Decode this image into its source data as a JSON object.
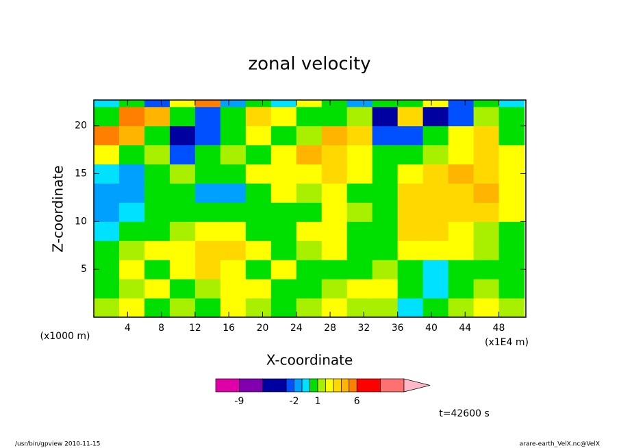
{
  "chart_data": {
    "type": "contour",
    "title": "zonal velocity",
    "x_label": "X-coordinate",
    "y_label": "Z-coordinate",
    "x_unit": "(x1E4 m)",
    "y_unit": "(x1000 m)",
    "time_label": "t=42600 s",
    "footer_left": "/usr/bin/gpview  2010-11-15",
    "footer_right": "arare-earth_VelX.nc@VelX",
    "xlim": [
      0,
      51.2
    ],
    "ylim": [
      0,
      22.7
    ],
    "xticks": [
      4,
      8,
      12,
      16,
      20,
      24,
      28,
      32,
      36,
      40,
      44,
      48
    ],
    "yticks": [
      5,
      10,
      15,
      20
    ],
    "levels": [
      -12,
      -9,
      -6,
      -3,
      -2,
      -1,
      0,
      1,
      2,
      3,
      4,
      5,
      6,
      9,
      12
    ],
    "level_colors": [
      "#e000a8",
      "#8000b0",
      "#0000a0",
      "#0050ff",
      "#00a0ff",
      "#00e0ff",
      "#00e000",
      "#a8f000",
      "#ffff00",
      "#ffd800",
      "#ffb400",
      "#ff8000",
      "#ff0000",
      "#ff7070",
      "#ffb8c8"
    ],
    "colorbar_ticks": [
      -9,
      -2,
      1,
      6
    ],
    "x": [
      1.5,
      4.5,
      7.5,
      10.5,
      13.5,
      16.5,
      19.5,
      22.5,
      25.5,
      28.5,
      31.5,
      34.5,
      37.5,
      40.5,
      43.5,
      46.5,
      49.5
    ],
    "z": [
      1,
      3,
      5,
      7,
      9,
      11,
      13,
      15,
      17,
      19,
      21,
      23
    ],
    "values": [
      [
        1.5,
        2.5,
        0.5,
        1.5,
        0.5,
        2.5,
        1.5,
        0.5,
        1.5,
        2.5,
        1.5,
        1.5,
        -0.5,
        0.5,
        1.5,
        2.5,
        1.5
      ],
      [
        0.5,
        1.5,
        2.5,
        0.5,
        1.5,
        2.5,
        2.5,
        0.5,
        0.5,
        1.5,
        2.5,
        2.5,
        0.5,
        -0.5,
        0.5,
        1.5,
        0.5
      ],
      [
        0.5,
        2.5,
        0.5,
        2.5,
        3.5,
        2.5,
        0.5,
        2.5,
        0.5,
        0.5,
        0.5,
        1.5,
        0.5,
        -0.5,
        0.5,
        0.5,
        0.5
      ],
      [
        0.5,
        1.5,
        2.5,
        2.5,
        3.5,
        3.5,
        2.5,
        0.5,
        1.5,
        2.5,
        0.5,
        0.5,
        2.5,
        2.5,
        2.5,
        1.5,
        0.5
      ],
      [
        -0.5,
        0.5,
        0.5,
        1.5,
        2.5,
        2.5,
        0.5,
        0.5,
        2.5,
        2.5,
        0.5,
        0.5,
        3.5,
        3.5,
        2.5,
        1.5,
        0.5
      ],
      [
        -1.5,
        -0.5,
        0.5,
        0.5,
        0.5,
        0.5,
        0.5,
        0.5,
        0.5,
        2.5,
        1.5,
        0.5,
        3.5,
        3.5,
        3.5,
        3.5,
        2.5
      ],
      [
        -1.5,
        -1.5,
        0.5,
        0.5,
        -1.5,
        -1.5,
        0.5,
        2.5,
        1.5,
        2.5,
        0.5,
        0.5,
        3.5,
        3.5,
        3.5,
        4.5,
        2.5
      ],
      [
        -0.5,
        -1.5,
        0.5,
        1.5,
        0.5,
        0.5,
        2.5,
        2.5,
        2.5,
        3.5,
        2.5,
        0.5,
        2.5,
        3.5,
        4.5,
        3.5,
        2.5
      ],
      [
        2.5,
        0.5,
        1.5,
        -2.5,
        0.5,
        1.5,
        0.5,
        2.5,
        4.5,
        3.5,
        2.5,
        0.5,
        0.5,
        1.5,
        2.5,
        3.5,
        2.5
      ],
      [
        5.5,
        4.5,
        0.5,
        -4,
        -2.5,
        0.5,
        2.5,
        0.5,
        1.5,
        4.5,
        3.5,
        -2.5,
        -2.5,
        0.5,
        2.5,
        3.5,
        0.5
      ],
      [
        0.5,
        5.5,
        4.5,
        0.5,
        -2.5,
        0.5,
        3.5,
        2.5,
        0.5,
        0.5,
        1.5,
        -4,
        3.5,
        -4,
        -2.5,
        1.5,
        0.5
      ],
      [
        -0.5,
        0.5,
        -2.5,
        2.5,
        5.5,
        -1.5,
        0.5,
        -0.5,
        2.5,
        0.5,
        -1.5,
        0.5,
        0.5,
        2.5,
        -2.5,
        0.5,
        -0.5
      ]
    ]
  }
}
